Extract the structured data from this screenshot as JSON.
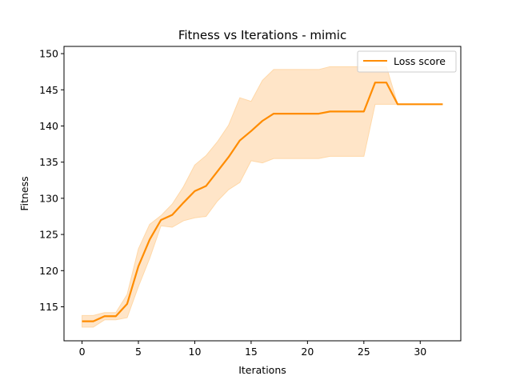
{
  "chart_data": {
    "type": "line",
    "title": "Fitness vs Iterations - mimic",
    "xlabel": "Iterations",
    "ylabel": "Fitness",
    "xlim": [
      -1.6,
      33.6
    ],
    "ylim": [
      110.3,
      151.0
    ],
    "x_ticks": [
      0,
      5,
      10,
      15,
      20,
      25,
      30
    ],
    "y_ticks": [
      115,
      120,
      125,
      130,
      135,
      140,
      145,
      150
    ],
    "grid": false,
    "legend_position": "top-right",
    "colors": {
      "line": "#ff8c00",
      "band": "#ffe5c8",
      "band_edge": "#ffd8a8",
      "axes": "#000000"
    },
    "series": [
      {
        "name": "Loss score",
        "x": [
          0,
          1,
          2,
          3,
          4,
          5,
          6,
          7,
          8,
          9,
          10,
          11,
          12,
          13,
          14,
          15,
          16,
          17,
          18,
          19,
          20,
          21,
          22,
          23,
          24,
          25,
          26,
          27,
          28,
          29,
          30,
          31,
          32
        ],
        "mean": [
          113.0,
          113.0,
          113.7,
          113.7,
          115.4,
          120.6,
          124.3,
          127.0,
          127.7,
          129.4,
          131.0,
          131.7,
          133.7,
          135.7,
          138.0,
          139.3,
          140.7,
          141.7,
          141.7,
          141.7,
          141.7,
          141.7,
          142.0,
          142.0,
          142.0,
          142.0,
          146.0,
          146.0,
          143.0,
          143.0,
          143.0,
          143.0,
          143.0
        ],
        "upper": [
          113.8,
          113.8,
          114.2,
          114.2,
          116.7,
          123.0,
          126.4,
          127.6,
          129.2,
          131.6,
          134.6,
          135.9,
          137.8,
          140.1,
          143.9,
          143.4,
          146.3,
          147.8,
          147.8,
          147.8,
          147.8,
          147.8,
          148.2,
          148.2,
          148.2,
          148.2,
          148.2,
          148.2,
          143.0,
          143.0,
          143.0,
          143.0,
          143.0
        ],
        "lower": [
          112.2,
          112.2,
          113.2,
          113.2,
          113.5,
          117.8,
          121.7,
          126.2,
          126.0,
          126.9,
          127.3,
          127.5,
          129.6,
          131.2,
          132.2,
          135.2,
          134.9,
          135.5,
          135.5,
          135.5,
          135.5,
          135.5,
          135.8,
          135.8,
          135.8,
          135.8,
          143.0,
          143.0,
          143.0,
          143.0,
          143.0,
          143.0,
          143.0
        ]
      }
    ]
  }
}
